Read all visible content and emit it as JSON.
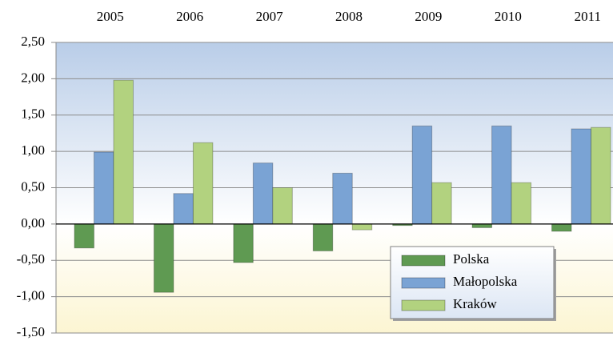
{
  "chart_data": {
    "type": "bar",
    "categories": [
      "2005",
      "2006",
      "2007",
      "2008",
      "2009",
      "2010",
      "2011"
    ],
    "series": [
      {
        "name": "Polska",
        "color": "#5f9a52",
        "values": [
          -0.33,
          -0.94,
          -0.53,
          -0.37,
          -0.02,
          -0.05,
          -0.1
        ]
      },
      {
        "name": "Małopolska",
        "color": "#7aa3d4",
        "values": [
          0.99,
          0.42,
          0.84,
          0.7,
          1.35,
          1.35,
          1.31
        ]
      },
      {
        "name": "Kraków",
        "color": "#b2d27f",
        "values": [
          1.98,
          1.12,
          0.5,
          -0.08,
          0.57,
          0.57,
          1.33
        ]
      }
    ],
    "ylim": [
      -1.5,
      2.5
    ],
    "yticks": [
      {
        "value": -1.5,
        "label": "-1,50"
      },
      {
        "value": -1,
        "label": "-1,00"
      },
      {
        "value": -0.5,
        "label": "-0,50"
      },
      {
        "value": 0,
        "label": "0,00"
      },
      {
        "value": 0.5,
        "label": "0,50"
      },
      {
        "value": 1,
        "label": "1,00"
      },
      {
        "value": 1.5,
        "label": "1,50"
      },
      {
        "value": 2,
        "label": "2,00"
      },
      {
        "value": 2.5,
        "label": "2,50"
      }
    ],
    "grid": true,
    "legend": "lower right"
  }
}
